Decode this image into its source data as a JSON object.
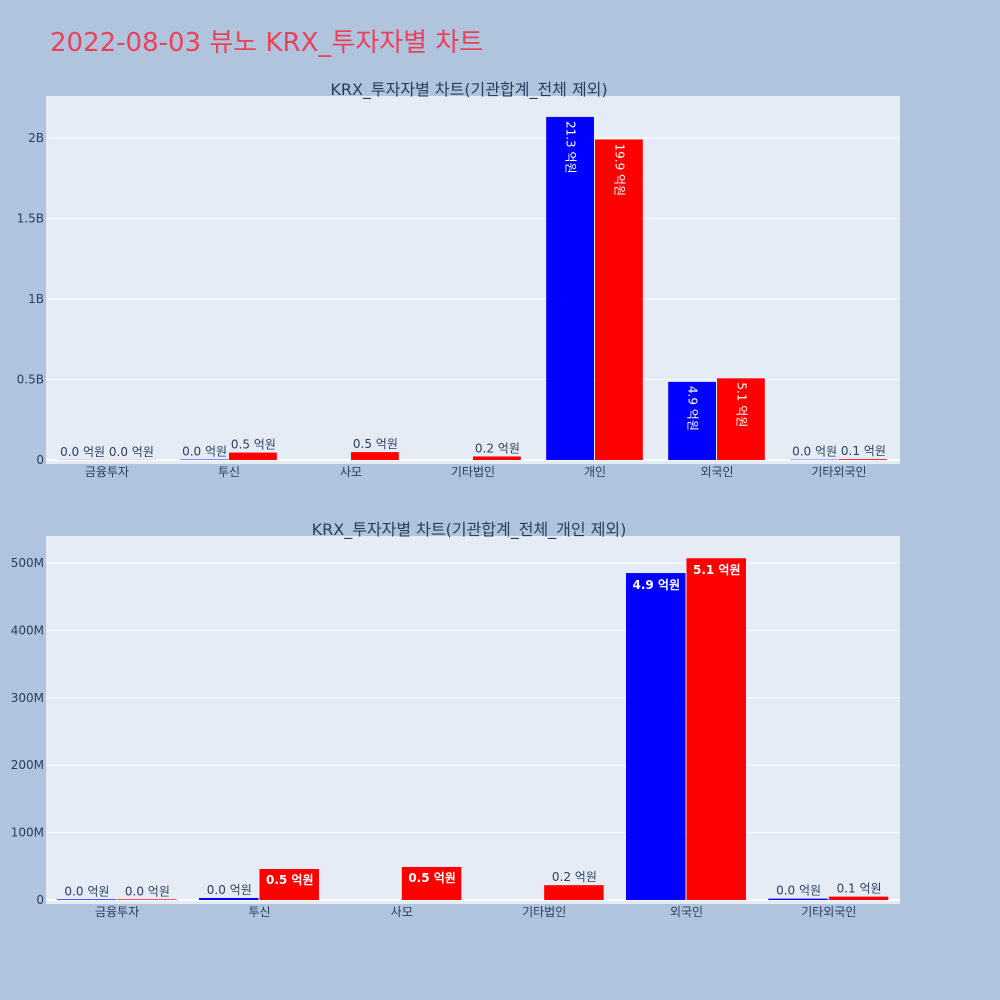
{
  "title": "2022-08-03 뷰노 KRX_투자자별 차트",
  "colors": {
    "buy": "#0000ff",
    "sell": "#ff0000",
    "background": "#b0c4de",
    "plot_bg": "#e5ecf6",
    "title": "#e8435a"
  },
  "chart_data": [
    {
      "type": "bar",
      "title": "KRX_투자자별 차트(기관합계_전체 제외)",
      "categories": [
        "금융투자",
        "투신",
        "사모",
        "기타법인",
        "개인",
        "외국인",
        "기타외국인"
      ],
      "series": [
        {
          "color": "#0000ff",
          "values": [
            1000000,
            3000000,
            0,
            0,
            2130000000,
            485000000,
            2000000
          ],
          "labels": [
            "0.0 억원",
            "0.0 억원",
            "",
            "",
            "21.3 억원",
            "4.9 억원",
            "0.0 억원"
          ]
        },
        {
          "color": "#ff0000",
          "values": [
            1000000,
            46000000,
            49000000,
            22000000,
            1990000000,
            507000000,
            5000000
          ],
          "labels": [
            "0.0 억원",
            "0.5 억원",
            "0.5 억원",
            "0.2 억원",
            "19.9 억원",
            "5.1 억원",
            "0.1 억원"
          ]
        }
      ],
      "y_ticks": [
        0,
        500000000,
        1000000000,
        1500000000,
        2000000000
      ],
      "y_tick_labels": [
        "0",
        "0.5B",
        "1B",
        "1.5B",
        "2B"
      ],
      "ylim": [
        0,
        2260000000
      ],
      "grid": true
    },
    {
      "type": "bar",
      "title": "KRX_투자자별 차트(기관합계_전체_개인 제외)",
      "categories": [
        "금융투자",
        "투신",
        "사모",
        "기타법인",
        "외국인",
        "기타외국인"
      ],
      "series": [
        {
          "color": "#0000ff",
          "values": [
            1000000,
            3000000,
            0,
            0,
            485000000,
            2000000
          ],
          "labels": [
            "0.0 억원",
            "0.0 억원",
            "",
            "",
            "4.9 억원",
            "0.0 억원"
          ]
        },
        {
          "color": "#ff0000",
          "values": [
            1000000,
            46000000,
            49000000,
            22000000,
            507000000,
            5000000
          ],
          "labels": [
            "0.0 억원",
            "0.5 억원",
            "0.5 억원",
            "0.2 억원",
            "5.1 억원",
            "0.1 억원"
          ]
        }
      ],
      "y_ticks": [
        0,
        100000000,
        200000000,
        300000000,
        400000000,
        500000000
      ],
      "y_tick_labels": [
        "0",
        "100M",
        "200M",
        "300M",
        "400M",
        "500M"
      ],
      "ylim": [
        0,
        540000000
      ],
      "grid": true
    }
  ]
}
